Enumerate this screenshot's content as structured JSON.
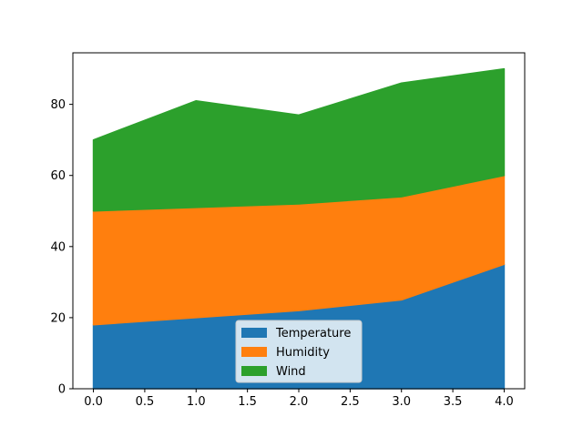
{
  "chart_data": {
    "type": "area",
    "stacked": true,
    "x": [
      0,
      1,
      2,
      3,
      4
    ],
    "series": [
      {
        "name": "Temperature",
        "values": [
          18,
          20,
          22,
          25,
          35
        ],
        "color": "#1f77b4"
      },
      {
        "name": "Humidity",
        "values": [
          32,
          31,
          30,
          29,
          25
        ],
        "color": "#ff7f0e"
      },
      {
        "name": "Wind",
        "values": [
          20,
          30,
          25,
          32,
          30
        ],
        "color": "#2ca02c"
      }
    ],
    "xlim": [
      -0.2,
      4.2
    ],
    "ylim": [
      0,
      94.5
    ],
    "x_ticks": [
      "0.0",
      "0.5",
      "1.0",
      "1.5",
      "2.0",
      "2.5",
      "3.0",
      "3.5",
      "4.0"
    ],
    "y_ticks": [
      "0",
      "20",
      "40",
      "60",
      "80"
    ],
    "grid": false,
    "legend_position": "lower-center"
  }
}
